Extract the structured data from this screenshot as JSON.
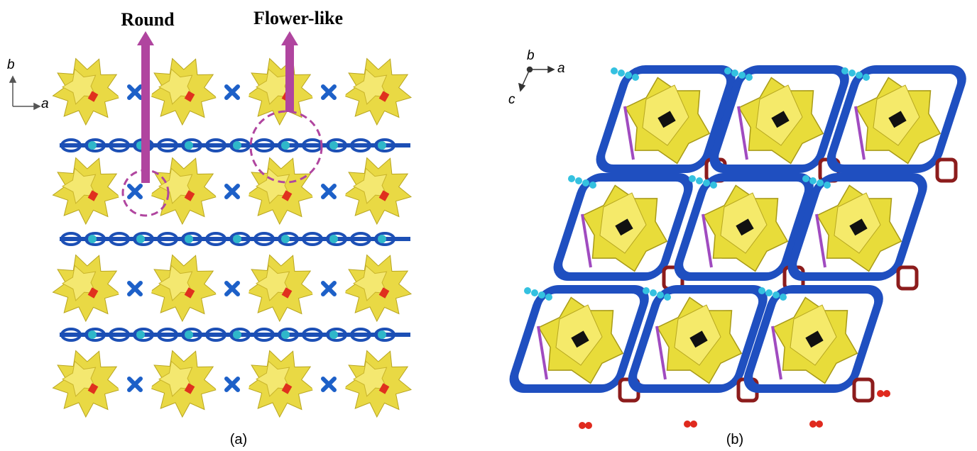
{
  "panels": [
    {
      "caption": "(a)",
      "callouts": [
        "Round",
        "Flower-like"
      ],
      "axes": [
        "b",
        "a"
      ]
    },
    {
      "caption": "(b)",
      "axes": [
        "b",
        "a",
        "c"
      ]
    }
  ]
}
